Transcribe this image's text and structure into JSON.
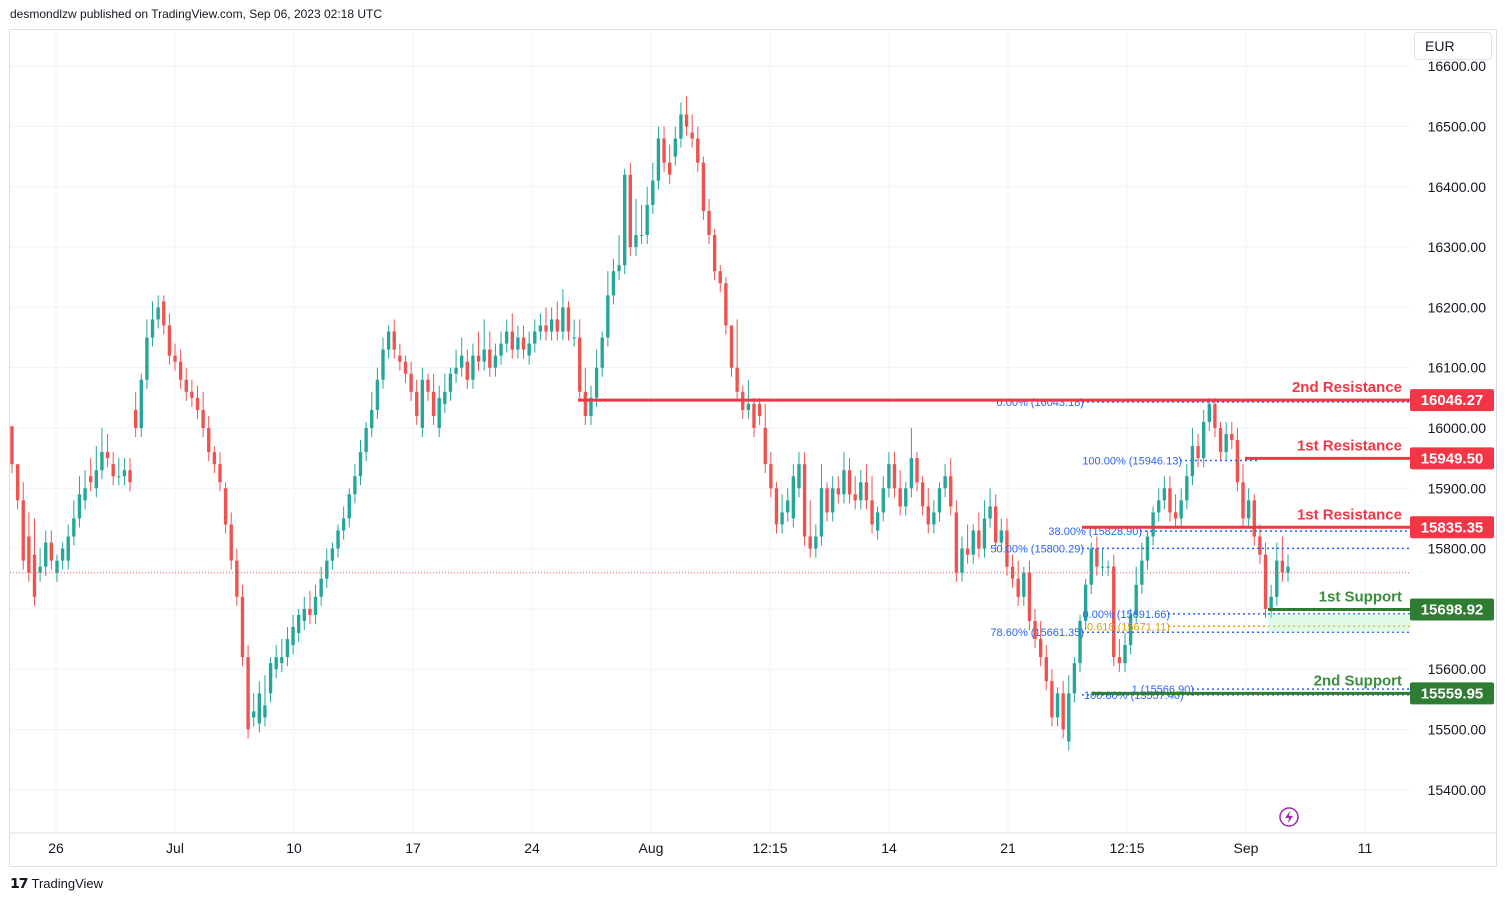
{
  "header": {
    "published_text": "desmondlzw published on TradingView.com, Sep 06, 2023 02:18 UTC"
  },
  "currency_button": {
    "label": "EUR"
  },
  "footer": {
    "brand_label": "TradingView"
  },
  "colors": {
    "up": "#26a69a",
    "down": "#ef5350",
    "resistance": "#f23645",
    "support": "#22ab94",
    "support_text": "#388e3c",
    "fib": "#2962ff",
    "grid": "#f0f3fa"
  },
  "chart_data": {
    "type": "candlestick",
    "y_axis": {
      "min": 15330,
      "max": 16660,
      "ticks": [
        "15400.00",
        "15500.00",
        "15600.00",
        "15700.00",
        "15800.00",
        "15900.00",
        "16000.00",
        "16100.00",
        "16200.00",
        "16300.00",
        "16400.00",
        "16500.00",
        "16600.00"
      ],
      "position": "right"
    },
    "x_axis": {
      "labels": [
        "26",
        "Jul",
        "10",
        "17",
        "24",
        "Aug",
        "12:15",
        "14",
        "21",
        "12:15",
        "Sep",
        "11"
      ]
    },
    "candles": [
      [
        16003,
        15940,
        15950
      ],
      [
        15940,
        15880,
        15920
      ],
      [
        15880,
        15780,
        15910
      ],
      [
        15820,
        15760,
        15860
      ],
      [
        15790,
        15720,
        15850
      ],
      [
        15760,
        15770,
        15800
      ],
      [
        15770,
        15810,
        15830
      ],
      [
        15810,
        15780,
        15830
      ],
      [
        15760,
        15780,
        15790
      ],
      [
        15780,
        15800,
        15810
      ],
      [
        15780,
        15820,
        15840
      ],
      [
        15820,
        15850,
        15880
      ],
      [
        15850,
        15890,
        15920
      ],
      [
        15880,
        15900,
        15930
      ],
      [
        15920,
        15910,
        15950
      ],
      [
        15900,
        15930,
        15970
      ],
      [
        15930,
        15960,
        16000
      ],
      [
        15960,
        15950,
        15990
      ],
      [
        15940,
        15920,
        15960
      ],
      [
        15920,
        15920,
        15950
      ],
      [
        15920,
        15930,
        15950
      ],
      [
        15930,
        15910,
        15950
      ],
      [
        16030,
        16000,
        16060
      ],
      [
        16000,
        16080,
        16090
      ],
      [
        16080,
        16150,
        16180
      ],
      [
        16150,
        16180,
        16210
      ],
      [
        16180,
        16200,
        16220
      ],
      [
        16210,
        16170,
        16220
      ],
      [
        16170,
        16120,
        16190
      ],
      [
        16120,
        16110,
        16140
      ],
      [
        16110,
        16080,
        16130
      ],
      [
        16080,
        16060,
        16100
      ],
      [
        16060,
        16050,
        16080
      ],
      [
        16050,
        16030,
        16070
      ],
      [
        16030,
        16000,
        16060
      ],
      [
        16000,
        15960,
        16020
      ],
      [
        15960,
        15940,
        15970
      ],
      [
        15940,
        15910,
        15960
      ],
      [
        15900,
        15840,
        15910
      ],
      [
        15840,
        15780,
        15860
      ],
      [
        15780,
        15720,
        15800
      ],
      [
        15720,
        15620,
        15740
      ],
      [
        15620,
        15500,
        15640
      ],
      [
        15520,
        15530,
        15560
      ],
      [
        15510,
        15560,
        15580
      ],
      [
        15520,
        15540,
        15590
      ],
      [
        15560,
        15610,
        15620
      ],
      [
        15600,
        15620,
        15640
      ],
      [
        15610,
        15620,
        15650
      ],
      [
        15620,
        15650,
        15670
      ],
      [
        15640,
        15670,
        15690
      ],
      [
        15660,
        15690,
        15700
      ],
      [
        15680,
        15700,
        15720
      ],
      [
        15700,
        15690,
        15730
      ],
      [
        15690,
        15720,
        15740
      ],
      [
        15720,
        15750,
        15770
      ],
      [
        15750,
        15780,
        15800
      ],
      [
        15780,
        15800,
        15810
      ],
      [
        15800,
        15830,
        15840
      ],
      [
        15830,
        15850,
        15870
      ],
      [
        15850,
        15890,
        15900
      ],
      [
        15890,
        15920,
        15940
      ],
      [
        15920,
        15960,
        15980
      ],
      [
        15960,
        16000,
        16010
      ],
      [
        16000,
        16030,
        16060
      ],
      [
        16030,
        16080,
        16100
      ],
      [
        16080,
        16130,
        16150
      ],
      [
        16130,
        16160,
        16170
      ],
      [
        16160,
        16130,
        16180
      ],
      [
        16120,
        16110,
        16140
      ],
      [
        16110,
        16090,
        16120
      ],
      [
        16090,
        16060,
        16110
      ],
      [
        16060,
        16020,
        16080
      ],
      [
        16000,
        16080,
        16100
      ],
      [
        16080,
        16060,
        16090
      ],
      [
        16060,
        16020,
        16090
      ],
      [
        16000,
        16050,
        16070
      ],
      [
        16040,
        16060,
        16090
      ],
      [
        16060,
        16090,
        16100
      ],
      [
        16090,
        16100,
        16130
      ],
      [
        16100,
        16120,
        16150
      ],
      [
        16110,
        16080,
        16130
      ],
      [
        16080,
        16120,
        16140
      ],
      [
        16120,
        16110,
        16160
      ],
      [
        16110,
        16130,
        16180
      ],
      [
        16130,
        16100,
        16160
      ],
      [
        16100,
        16120,
        16140
      ],
      [
        16120,
        16140,
        16160
      ],
      [
        16140,
        16160,
        16180
      ],
      [
        16160,
        16130,
        16190
      ],
      [
        16130,
        16150,
        16170
      ],
      [
        16150,
        16130,
        16170
      ],
      [
        16120,
        16140,
        16160
      ],
      [
        16140,
        16160,
        16180
      ],
      [
        16160,
        16170,
        16190
      ],
      [
        16170,
        16160,
        16200
      ],
      [
        16160,
        16180,
        16200
      ],
      [
        16180,
        16160,
        16210
      ],
      [
        16160,
        16200,
        16230
      ],
      [
        16200,
        16160,
        16210
      ],
      [
        16150,
        16150,
        16180
      ],
      [
        16150,
        16060,
        16180
      ],
      [
        16060,
        16020,
        16100
      ],
      [
        16020,
        16050,
        16070
      ],
      [
        16050,
        16100,
        16130
      ],
      [
        16100,
        16150,
        16160
      ],
      [
        16150,
        16220,
        16260
      ],
      [
        16220,
        16260,
        16280
      ],
      [
        16260,
        16270,
        16320
      ],
      [
        16270,
        16420,
        16430
      ],
      [
        16420,
        16300,
        16440
      ],
      [
        16300,
        16320,
        16380
      ],
      [
        16320,
        16320,
        16370
      ],
      [
        16320,
        16370,
        16400
      ],
      [
        16370,
        16410,
        16440
      ],
      [
        16410,
        16480,
        16500
      ],
      [
        16480,
        16440,
        16500
      ],
      [
        16440,
        16420,
        16470
      ],
      [
        16450,
        16480,
        16500
      ],
      [
        16480,
        16520,
        16540
      ],
      [
        16520,
        16500,
        16550
      ],
      [
        16490,
        16480,
        16520
      ],
      [
        16480,
        16440,
        16500
      ],
      [
        16440,
        16360,
        16450
      ],
      [
        16360,
        16320,
        16380
      ],
      [
        16320,
        16260,
        16330
      ],
      [
        16260,
        16240,
        16270
      ],
      [
        16240,
        16170,
        16250
      ],
      [
        16170,
        16100,
        16170
      ],
      [
        16100,
        16060,
        16180
      ],
      [
        16060,
        16030,
        16070
      ],
      [
        16030,
        16040,
        16080
      ],
      [
        16040,
        16000,
        16050
      ],
      [
        16040,
        16020,
        16050
      ],
      [
        16000,
        15940,
        16040
      ],
      [
        15940,
        15900,
        15960
      ],
      [
        15900,
        15840,
        15910
      ],
      [
        15840,
        15860,
        15890
      ],
      [
        15860,
        15880,
        15900
      ],
      [
        15850,
        15920,
        15940
      ],
      [
        15900,
        15940,
        15960
      ],
      [
        15940,
        15820,
        15960
      ],
      [
        15820,
        15800,
        15880
      ],
      [
        15800,
        15820,
        15840
      ],
      [
        15820,
        15900,
        15940
      ],
      [
        15900,
        15860,
        15910
      ],
      [
        15860,
        15900,
        15920
      ],
      [
        15900,
        15890,
        15920
      ],
      [
        15890,
        15930,
        15960
      ],
      [
        15930,
        15890,
        15950
      ],
      [
        15890,
        15880,
        15920
      ],
      [
        15880,
        15910,
        15930
      ],
      [
        15910,
        15880,
        15940
      ],
      [
        15880,
        15840,
        15920
      ],
      [
        15830,
        15860,
        15870
      ],
      [
        15860,
        15900,
        15920
      ],
      [
        15900,
        15940,
        15960
      ],
      [
        15940,
        15900,
        15960
      ],
      [
        15900,
        15870,
        15930
      ],
      [
        15870,
        15900,
        15910
      ],
      [
        15900,
        15950,
        16000
      ],
      [
        15950,
        15910,
        15960
      ],
      [
        15910,
        15870,
        15920
      ],
      [
        15870,
        15840,
        15900
      ],
      [
        15840,
        15860,
        15880
      ],
      [
        15860,
        15900,
        15910
      ],
      [
        15900,
        15920,
        15940
      ],
      [
        15920,
        15870,
        15950
      ],
      [
        15860,
        15760,
        15880
      ],
      [
        15760,
        15800,
        15820
      ],
      [
        15800,
        15790,
        15840
      ],
      [
        15790,
        15830,
        15840
      ],
      [
        15830,
        15800,
        15860
      ],
      [
        15800,
        15850,
        15880
      ],
      [
        15850,
        15870,
        15900
      ],
      [
        15870,
        15810,
        15890
      ],
      [
        15810,
        15830,
        15850
      ],
      [
        15830,
        15770,
        15850
      ],
      [
        15770,
        15750,
        15790
      ],
      [
        15750,
        15720,
        15780
      ],
      [
        15720,
        15760,
        15770
      ],
      [
        15760,
        15680,
        15780
      ],
      [
        15680,
        15650,
        15700
      ],
      [
        15650,
        15620,
        15680
      ],
      [
        15620,
        15580,
        15640
      ],
      [
        15580,
        15520,
        15600
      ],
      [
        15520,
        15560,
        15570
      ],
      [
        15560,
        15500,
        15580
      ],
      [
        15480,
        15560,
        15590
      ],
      [
        15560,
        15610,
        15620
      ],
      [
        15610,
        15680,
        15690
      ],
      [
        15680,
        15740,
        15750
      ],
      [
        15740,
        15800,
        15810
      ],
      [
        15800,
        15770,
        15820
      ],
      [
        15770,
        15770,
        15800
      ],
      [
        15770,
        15770,
        15780
      ],
      [
        15770,
        15620,
        15790
      ],
      [
        15620,
        15610,
        15650
      ],
      [
        15610,
        15640,
        15660
      ],
      [
        15640,
        15690,
        15700
      ],
      [
        15690,
        15740,
        15770
      ],
      [
        15740,
        15780,
        15810
      ],
      [
        15780,
        15820,
        15830
      ],
      [
        15820,
        15860,
        15870
      ],
      [
        15860,
        15880,
        15900
      ],
      [
        15880,
        15900,
        15920
      ],
      [
        15900,
        15860,
        15920
      ],
      [
        15860,
        15850,
        15890
      ],
      [
        15850,
        15880,
        15900
      ],
      [
        15880,
        15920,
        15940
      ],
      [
        15920,
        15970,
        16000
      ],
      [
        15970,
        15950,
        15990
      ],
      [
        15950,
        16010,
        16030
      ],
      [
        16010,
        16040,
        16050
      ],
      [
        16040,
        16000,
        16050
      ],
      [
        16000,
        15960,
        16010
      ],
      [
        15960,
        15990,
        16010
      ],
      [
        15990,
        15980,
        16010
      ],
      [
        15980,
        15910,
        16000
      ],
      [
        15910,
        15850,
        15940
      ],
      [
        15850,
        15880,
        15900
      ],
      [
        15880,
        15820,
        15890
      ],
      [
        15820,
        15790,
        15840
      ],
      [
        15790,
        15700,
        15810
      ],
      [
        15700,
        15720,
        15740
      ],
      [
        15720,
        15780,
        15810
      ],
      [
        15780,
        15760,
        15820
      ],
      [
        15760,
        15770,
        15790
      ]
    ],
    "annotations": {
      "hlines": [
        {
          "label": "2nd Resistance",
          "value": 16046.27,
          "price_label": "16046.27",
          "kind": "resistance"
        },
        {
          "label": "1st Resistance",
          "value": 15949.5,
          "price_label": "15949.50",
          "kind": "resistance"
        },
        {
          "label": "1st Resistance",
          "value": 15835.35,
          "price_label": "15835.35",
          "kind": "resistance"
        },
        {
          "label": "1st Support",
          "value": 15698.92,
          "price_label": "15698.92",
          "kind": "support"
        },
        {
          "label": "2nd Support",
          "value": 15559.95,
          "price_label": "15559.95",
          "kind": "support"
        }
      ],
      "fib_levels": [
        {
          "text": "0.00% (16043.18)",
          "value": 16043.18,
          "color": "#2962ff"
        },
        {
          "text": "100.00% (15946.13)",
          "value": 15946.13,
          "color": "#2962ff"
        },
        {
          "text": "38.00% (15828.90)",
          "value": 15828.9,
          "color": "#2962ff"
        },
        {
          "text": "50.00% (15800.29)",
          "value": 15800.29,
          "color": "#2962ff"
        },
        {
          "text": "0.00% (15691.66)",
          "value": 15691.66,
          "color": "#2962ff"
        },
        {
          "text": "0.618 (15671.11)",
          "value": 15671.11,
          "color": "#e0a100"
        },
        {
          "text": "78.60% (15661.35)",
          "value": 15661.35,
          "color": "#2962ff"
        },
        {
          "text": "1 (15566.90)",
          "value": 15566.9,
          "color": "#2962ff"
        },
        {
          "text": "100.00% (15557.40)",
          "value": 15557.4,
          "color": "#2962ff"
        }
      ],
      "last_price": 15760
    }
  }
}
